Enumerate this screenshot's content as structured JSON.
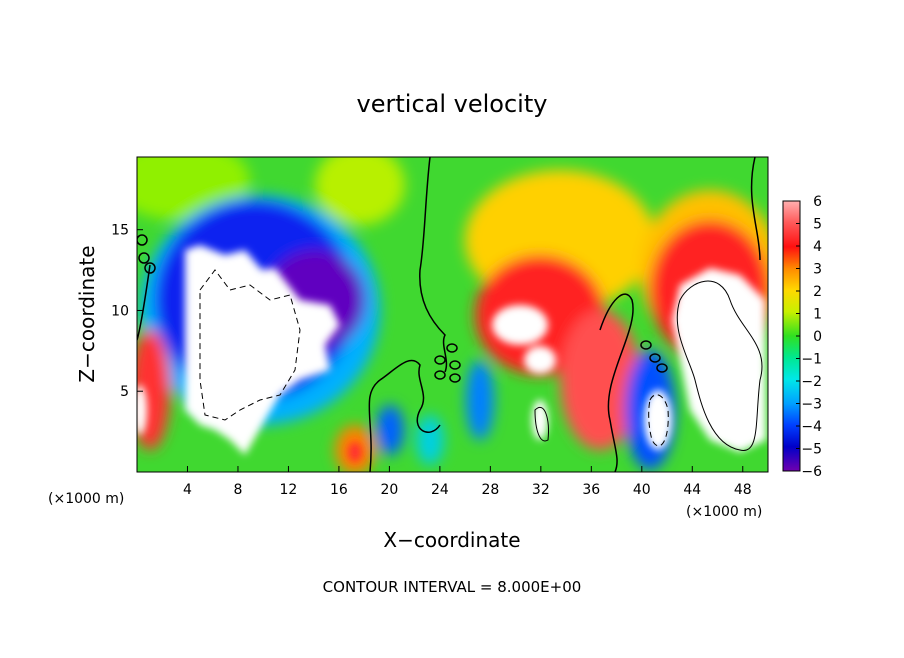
{
  "chart_data": {
    "type": "heatmap",
    "title": "vertical velocity",
    "xlabel": "X−coordinate",
    "ylabel": "Z−coordinate",
    "x_unit_left": "(×1000 m)",
    "x_unit_right": "(×1000 m)",
    "xlim": [
      0,
      50
    ],
    "ylim": [
      0,
      19.5
    ],
    "x_ticks": [
      4,
      8,
      12,
      16,
      20,
      24,
      28,
      32,
      36,
      40,
      44,
      48
    ],
    "y_ticks": [
      5,
      10,
      15
    ],
    "colorbar": {
      "ticks": [
        6,
        5,
        4,
        3,
        2,
        1,
        0,
        -1,
        -2,
        -3,
        -4,
        -5,
        -6
      ],
      "tick_labels": [
        "6",
        "5",
        "4",
        "3",
        "2",
        "1",
        "0",
        "−1",
        "−2",
        "−3",
        "−4",
        "−5",
        "−6"
      ],
      "range": [
        -6,
        6
      ]
    },
    "note": "CONTOUR INTERVAL = 8.000E+00",
    "features": [
      {
        "x": 8,
        "z": 9,
        "w": -7
      },
      {
        "x": 10,
        "z": 14,
        "w": -4
      },
      {
        "x": 33,
        "z": 7,
        "w": 6
      },
      {
        "x": 38,
        "z": 6,
        "w": 4
      },
      {
        "x": 46,
        "z": 8,
        "w": 7
      },
      {
        "x": 45,
        "z": 14,
        "w": 3
      },
      {
        "x": 41,
        "z": 4,
        "w": -5
      },
      {
        "x": 17,
        "z": 2,
        "w": 4
      },
      {
        "x": 0.5,
        "z": 5,
        "w": 4
      }
    ]
  }
}
